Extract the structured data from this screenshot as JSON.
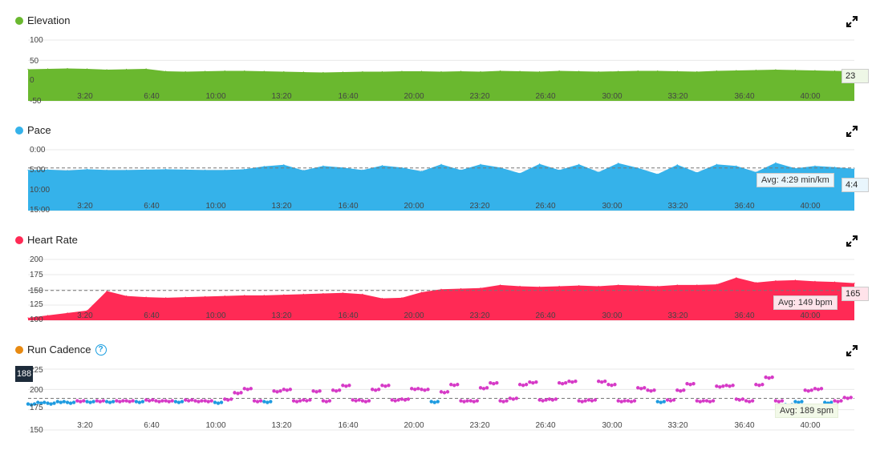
{
  "colors": {
    "elevation": "#6ab82f",
    "pace": "#35b2ea",
    "heart": "#ff2a55",
    "cad_orange": "#e88a12",
    "cad_purple": "#d63ac7",
    "cad_blue": "#1e9be0",
    "cad_green": "#4caf2a"
  },
  "x_ticks": [
    "3:20",
    "6:40",
    "10:00",
    "13:20",
    "16:40",
    "20:00",
    "23:20",
    "26:40",
    "30:00",
    "33:20",
    "36:40",
    "40:00"
  ],
  "panels": [
    {
      "key": "elevation",
      "title": "Elevation",
      "icon": "expand-icon",
      "y_ticks": [
        "100",
        "50",
        "0",
        "-50"
      ],
      "current": "23",
      "avg": ""
    },
    {
      "key": "pace",
      "title": "Pace",
      "icon": "expand-icon",
      "y_ticks": [
        "0:00",
        "5:00",
        "10:00",
        "15:00"
      ],
      "current": "4:4",
      "avg": "Avg: 4:29 min/km"
    },
    {
      "key": "heart",
      "title": "Heart Rate",
      "icon": "expand-icon",
      "y_ticks": [
        "200",
        "175",
        "150",
        "125",
        "100"
      ],
      "current": "165",
      "avg": "Avg: 149 bpm"
    },
    {
      "key": "cadence",
      "title": "Run Cadence",
      "icon": "expand-icon",
      "help_icon": "help-icon",
      "y_ticks": [
        "225",
        "200",
        "175",
        "150"
      ],
      "current": "188",
      "avg": "Avg: 189 spm"
    }
  ],
  "chart_data": [
    {
      "type": "area",
      "title": "Elevation",
      "ylim": [
        -50,
        100
      ],
      "x": [
        0,
        1,
        2,
        3,
        4,
        5,
        6,
        7,
        8,
        9,
        10,
        11,
        12,
        13,
        14,
        15,
        16,
        17,
        18,
        19,
        20,
        21,
        22,
        23,
        24,
        25,
        26,
        27,
        28,
        29,
        30,
        31,
        32,
        33,
        34,
        35,
        36,
        37,
        38,
        39,
        40,
        41,
        42
      ],
      "values": [
        28,
        29,
        30,
        29,
        27,
        28,
        29,
        23,
        22,
        23,
        24,
        24,
        23,
        22,
        21,
        20,
        21,
        22,
        22,
        23,
        23,
        22,
        23,
        22,
        24,
        23,
        22,
        24,
        23,
        22,
        23,
        24,
        24,
        23,
        22,
        24,
        25,
        26,
        27,
        26,
        25,
        24,
        23
      ]
    },
    {
      "type": "area",
      "title": "Pace",
      "ylim": [
        0,
        15
      ],
      "avg": 4.48,
      "inverted": true,
      "x": [
        0,
        1,
        2,
        3,
        4,
        5,
        6,
        7,
        8,
        9,
        10,
        11,
        12,
        13,
        14,
        15,
        16,
        17,
        18,
        19,
        20,
        21,
        22,
        23,
        24,
        25,
        26,
        27,
        28,
        29,
        30,
        31,
        32,
        33,
        34,
        35,
        36,
        37,
        38,
        39,
        40,
        41,
        42
      ],
      "values": [
        5.0,
        4.9,
        5.1,
        4.8,
        5.0,
        5.0,
        4.9,
        4.8,
        4.9,
        5.0,
        5.0,
        4.8,
        4.1,
        3.7,
        5.1,
        4.0,
        4.4,
        5.0,
        3.9,
        4.4,
        5.3,
        3.6,
        5.0,
        3.6,
        4.4,
        5.8,
        3.5,
        5.0,
        3.6,
        5.5,
        3.3,
        4.5,
        6.0,
        3.7,
        5.6,
        3.6,
        4.0,
        5.5,
        3.2,
        4.6,
        4.0,
        4.3,
        4.7
      ]
    },
    {
      "type": "area",
      "title": "Heart Rate",
      "ylim": [
        100,
        200
      ],
      "avg": 149,
      "x": [
        0,
        1,
        2,
        3,
        4,
        5,
        6,
        7,
        8,
        9,
        10,
        11,
        12,
        13,
        14,
        15,
        16,
        17,
        18,
        19,
        20,
        21,
        22,
        23,
        24,
        25,
        26,
        27,
        28,
        29,
        30,
        31,
        32,
        33,
        34,
        35,
        36,
        37,
        38,
        39,
        40,
        41,
        42
      ],
      "values": [
        104,
        108,
        112,
        116,
        148,
        140,
        138,
        137,
        138,
        139,
        140,
        141,
        141,
        142,
        143,
        144,
        145,
        143,
        136,
        137,
        146,
        151,
        152,
        153,
        158,
        156,
        155,
        156,
        157,
        156,
        158,
        157,
        156,
        158,
        158,
        159,
        170,
        162,
        165,
        166,
        164,
        163,
        161
      ]
    },
    {
      "type": "scatter",
      "title": "Run Cadence",
      "ylim": [
        150,
        225
      ],
      "avg": 189,
      "x": [
        0,
        0.5,
        1,
        1.5,
        2,
        2.5,
        3,
        3.5,
        4,
        4.5,
        5,
        5.5,
        6,
        6.5,
        7,
        7.5,
        8,
        8.5,
        9,
        9.5,
        10,
        10.5,
        11,
        11.5,
        12,
        12.5,
        13,
        13.5,
        14,
        14.5,
        15,
        15.5,
        16,
        16.5,
        17,
        17.5,
        18,
        18.5,
        19,
        19.5,
        20,
        20.5,
        21,
        21.5,
        22,
        22.5,
        23,
        23.5,
        24,
        24.5,
        25,
        25.5,
        26,
        26.5,
        27,
        27.5,
        28,
        28.5,
        29,
        29.5,
        30,
        30.5,
        31,
        31.5,
        32,
        32.5,
        33,
        33.5,
        34,
        34.5,
        35,
        35.5,
        36,
        36.5,
        37,
        37.5,
        38,
        38.5,
        39,
        39.5,
        40,
        40.5,
        41,
        41.5
      ],
      "values": [
        182,
        184,
        183,
        185,
        184,
        186,
        185,
        186,
        185,
        186,
        186,
        185,
        187,
        186,
        186,
        185,
        187,
        186,
        186,
        184,
        188,
        196,
        201,
        186,
        185,
        198,
        200,
        186,
        187,
        198,
        186,
        199,
        205,
        187,
        186,
        200,
        205,
        187,
        188,
        201,
        200,
        185,
        197,
        206,
        186,
        186,
        202,
        208,
        186,
        189,
        206,
        209,
        187,
        188,
        208,
        210,
        186,
        187,
        210,
        206,
        186,
        186,
        202,
        199,
        185,
        187,
        199,
        207,
        186,
        186,
        204,
        205,
        188,
        186,
        206,
        215,
        186,
        181,
        185,
        199,
        201,
        184,
        186,
        190
      ]
    }
  ]
}
